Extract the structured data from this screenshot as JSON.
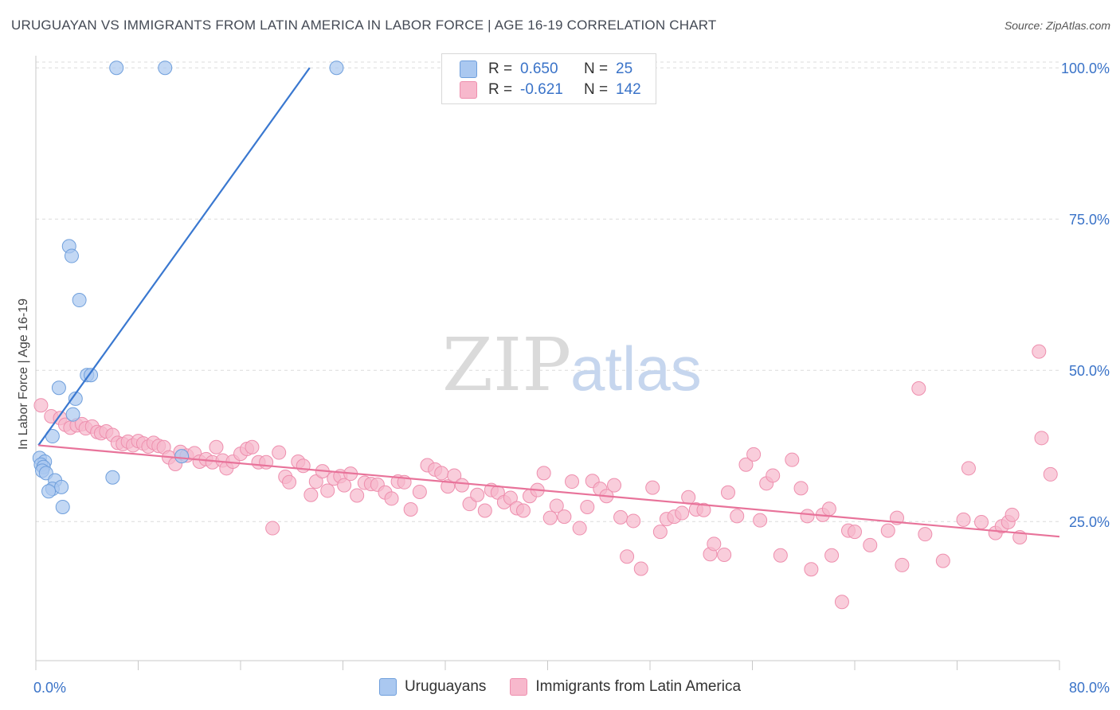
{
  "header": {
    "title": "URUGUAYAN VS IMMIGRANTS FROM LATIN AMERICA IN LABOR FORCE | AGE 16-19 CORRELATION CHART",
    "source": "Source: ZipAtlas.com"
  },
  "watermark": {
    "zip": "ZIP",
    "atlas": "atlas"
  },
  "legend": {
    "rows": [
      {
        "r_label": "R =",
        "r_value": "0.650",
        "n_label": "N =",
        "n_value": "25",
        "color": "#aac8f0"
      },
      {
        "r_label": "R =",
        "r_value": "-0.621",
        "n_label": "N =",
        "n_value": "142",
        "color": "#f7b8cc"
      }
    ]
  },
  "bottom_legend": {
    "items": [
      {
        "label": "Uruguayans",
        "color": "#aac8f0"
      },
      {
        "label": "Immigrants from Latin America",
        "color": "#f7b8cc"
      }
    ]
  },
  "chart_data": {
    "type": "scatter",
    "title": "URUGUAYAN VS IMMIGRANTS FROM LATIN AMERICA IN LABOR FORCE | AGE 16-19 CORRELATION CHART",
    "xlabel": "",
    "ylabel": "In Labor Force | Age 16-19",
    "xlim": [
      0,
      80
    ],
    "ylim": [
      2,
      102
    ],
    "x_tick_labels": [
      {
        "value": 0,
        "label": "0.0%"
      },
      {
        "value": 80,
        "label": "80.0%"
      }
    ],
    "y_tick_labels": [
      {
        "value": 25,
        "label": "25.0%"
      },
      {
        "value": 50,
        "label": "50.0%"
      },
      {
        "value": 75,
        "label": "75.0%"
      },
      {
        "value": 100,
        "label": "100.0%"
      }
    ],
    "grid": true,
    "legend_position": "top-center",
    "series": [
      {
        "name": "Uruguayans",
        "color": "#aac8f0",
        "edge_color": "#6f9fdc",
        "line_color": "#3a78d0",
        "trend": {
          "x0": 0.2,
          "y0": 37.6,
          "x1": 21.4,
          "y1": 100
        },
        "points": [
          [
            6.3,
            100
          ],
          [
            10.1,
            100
          ],
          [
            23.5,
            100
          ],
          [
            2.6,
            70.5
          ],
          [
            2.8,
            68.9
          ],
          [
            3.4,
            61.6
          ],
          [
            4.0,
            49.2
          ],
          [
            4.3,
            49.2
          ],
          [
            1.8,
            47.1
          ],
          [
            3.1,
            45.3
          ],
          [
            2.9,
            42.7
          ],
          [
            1.3,
            39.1
          ],
          [
            0.3,
            35.5
          ],
          [
            0.7,
            34.9
          ],
          [
            0.4,
            34.4
          ],
          [
            0.6,
            34.0
          ],
          [
            0.5,
            33.4
          ],
          [
            0.8,
            33.0
          ],
          [
            1.5,
            31.8
          ],
          [
            1.3,
            30.4
          ],
          [
            2.0,
            30.7
          ],
          [
            1.0,
            30.0
          ],
          [
            6.0,
            32.3
          ],
          [
            11.4,
            35.8
          ],
          [
            2.1,
            27.4
          ]
        ]
      },
      {
        "name": "Immigrants from Latin America",
        "color": "#f7b8cc",
        "edge_color": "#ee8fae",
        "line_color": "#e8739a",
        "trend": {
          "x0": 0.2,
          "y0": 37.6,
          "x1": 80,
          "y1": 22.5
        },
        "points": [
          [
            0.4,
            44.2
          ],
          [
            1.2,
            42.4
          ],
          [
            1.9,
            42.1
          ],
          [
            2.3,
            41.0
          ],
          [
            2.7,
            40.5
          ],
          [
            3.2,
            40.9
          ],
          [
            3.6,
            41.1
          ],
          [
            3.9,
            40.4
          ],
          [
            4.4,
            40.7
          ],
          [
            4.8,
            39.8
          ],
          [
            5.1,
            39.6
          ],
          [
            5.5,
            39.9
          ],
          [
            6.0,
            39.3
          ],
          [
            6.4,
            38.0
          ],
          [
            6.8,
            37.8
          ],
          [
            7.2,
            38.2
          ],
          [
            7.6,
            37.6
          ],
          [
            8.0,
            38.3
          ],
          [
            8.4,
            37.9
          ],
          [
            8.8,
            37.4
          ],
          [
            9.2,
            38.0
          ],
          [
            9.6,
            37.5
          ],
          [
            10.0,
            37.3
          ],
          [
            10.4,
            35.6
          ],
          [
            10.9,
            34.5
          ],
          [
            11.3,
            36.5
          ],
          [
            11.8,
            35.9
          ],
          [
            12.4,
            36.3
          ],
          [
            12.8,
            34.9
          ],
          [
            13.3,
            35.3
          ],
          [
            13.8,
            34.8
          ],
          [
            14.1,
            37.3
          ],
          [
            14.6,
            35.1
          ],
          [
            14.9,
            33.8
          ],
          [
            15.4,
            34.9
          ],
          [
            16.0,
            36.2
          ],
          [
            16.5,
            37.0
          ],
          [
            16.9,
            37.3
          ],
          [
            17.4,
            34.8
          ],
          [
            18.0,
            34.8
          ],
          [
            18.5,
            23.9
          ],
          [
            19.0,
            36.4
          ],
          [
            19.5,
            32.4
          ],
          [
            19.8,
            31.5
          ],
          [
            20.5,
            34.9
          ],
          [
            20.9,
            34.2
          ],
          [
            21.5,
            29.4
          ],
          [
            21.9,
            31.6
          ],
          [
            22.4,
            33.3
          ],
          [
            22.8,
            30.1
          ],
          [
            23.3,
            32.1
          ],
          [
            23.8,
            32.5
          ],
          [
            24.1,
            31.0
          ],
          [
            24.6,
            32.9
          ],
          [
            25.1,
            29.3
          ],
          [
            25.7,
            31.4
          ],
          [
            26.2,
            31.2
          ],
          [
            26.7,
            31.1
          ],
          [
            27.3,
            29.8
          ],
          [
            27.8,
            28.8
          ],
          [
            28.3,
            31.6
          ],
          [
            28.8,
            31.5
          ],
          [
            29.3,
            27.0
          ],
          [
            30.0,
            29.9
          ],
          [
            30.6,
            34.3
          ],
          [
            31.2,
            33.6
          ],
          [
            31.7,
            33.0
          ],
          [
            32.2,
            30.8
          ],
          [
            32.7,
            32.6
          ],
          [
            33.3,
            31.0
          ],
          [
            33.9,
            27.9
          ],
          [
            34.5,
            29.4
          ],
          [
            35.1,
            26.8
          ],
          [
            35.6,
            30.2
          ],
          [
            36.1,
            29.8
          ],
          [
            36.6,
            28.2
          ],
          [
            37.1,
            28.9
          ],
          [
            37.6,
            27.2
          ],
          [
            38.1,
            26.8
          ],
          [
            38.6,
            29.2
          ],
          [
            39.2,
            30.2
          ],
          [
            39.7,
            33.0
          ],
          [
            40.2,
            25.6
          ],
          [
            40.7,
            27.6
          ],
          [
            41.3,
            25.8
          ],
          [
            41.9,
            31.6
          ],
          [
            42.5,
            23.9
          ],
          [
            43.1,
            27.4
          ],
          [
            43.5,
            31.7
          ],
          [
            44.1,
            30.4
          ],
          [
            44.6,
            29.2
          ],
          [
            45.2,
            31.0
          ],
          [
            45.7,
            25.7
          ],
          [
            46.2,
            19.2
          ],
          [
            46.7,
            25.1
          ],
          [
            47.3,
            17.2
          ],
          [
            48.2,
            30.6
          ],
          [
            48.8,
            23.3
          ],
          [
            49.3,
            25.4
          ],
          [
            49.9,
            25.8
          ],
          [
            50.5,
            26.4
          ],
          [
            51.0,
            29.0
          ],
          [
            51.6,
            27.0
          ],
          [
            52.2,
            26.9
          ],
          [
            52.7,
            19.6
          ],
          [
            53.0,
            21.3
          ],
          [
            53.8,
            19.5
          ],
          [
            54.1,
            29.8
          ],
          [
            54.8,
            25.9
          ],
          [
            55.5,
            34.4
          ],
          [
            56.1,
            36.1
          ],
          [
            56.6,
            25.2
          ],
          [
            57.1,
            31.3
          ],
          [
            57.6,
            32.6
          ],
          [
            58.2,
            19.4
          ],
          [
            59.1,
            35.2
          ],
          [
            59.8,
            30.5
          ],
          [
            60.3,
            25.9
          ],
          [
            60.6,
            17.1
          ],
          [
            61.5,
            26.1
          ],
          [
            62.0,
            27.1
          ],
          [
            62.2,
            19.4
          ],
          [
            63.0,
            11.7
          ],
          [
            63.5,
            23.5
          ],
          [
            64.0,
            23.3
          ],
          [
            65.2,
            21.1
          ],
          [
            66.6,
            23.5
          ],
          [
            67.3,
            25.6
          ],
          [
            67.7,
            17.8
          ],
          [
            69.0,
            47.0
          ],
          [
            69.5,
            22.9
          ],
          [
            70.9,
            18.5
          ],
          [
            72.5,
            25.3
          ],
          [
            72.9,
            33.8
          ],
          [
            73.9,
            24.9
          ],
          [
            75.0,
            23.1
          ],
          [
            75.5,
            24.2
          ],
          [
            76.0,
            24.9
          ],
          [
            76.3,
            26.1
          ],
          [
            76.9,
            22.4
          ],
          [
            78.4,
            53.1
          ],
          [
            78.6,
            38.8
          ],
          [
            79.3,
            32.8
          ]
        ]
      }
    ]
  }
}
